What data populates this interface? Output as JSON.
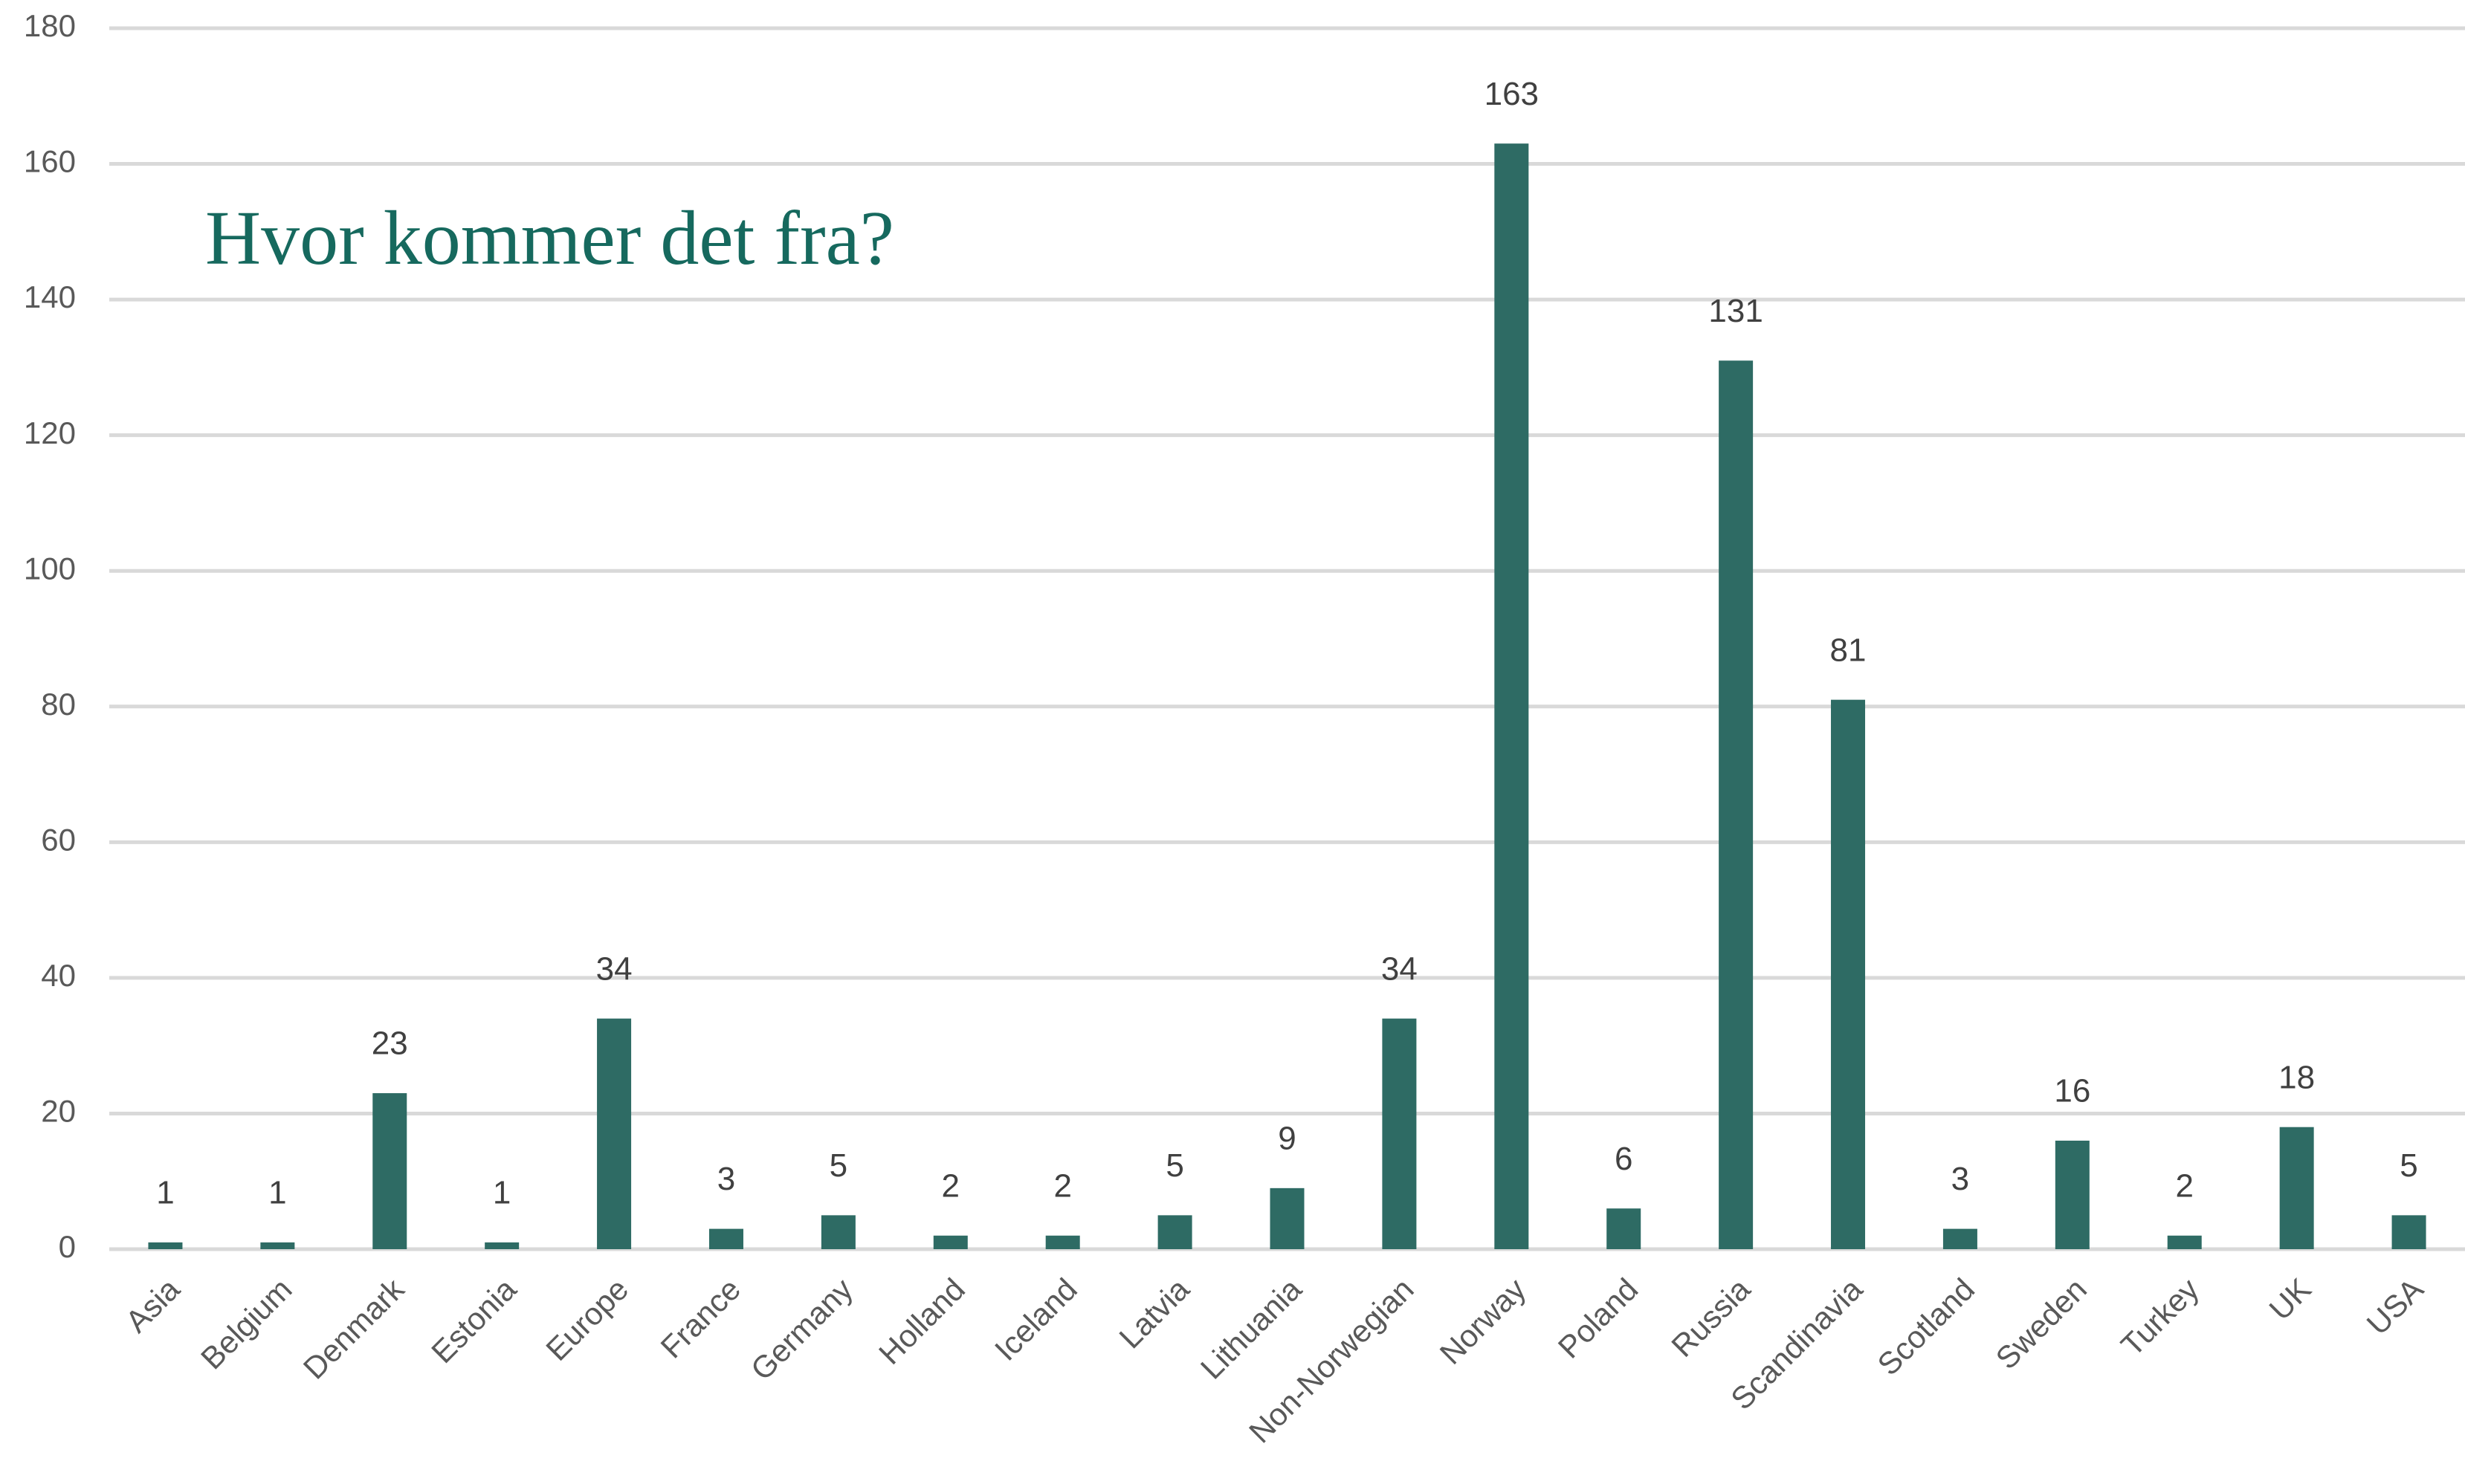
{
  "chart_data": {
    "type": "bar",
    "title": "Hvor kommer det fra?",
    "categories": [
      "Asia",
      "Belgium",
      "Denmark",
      "Estonia",
      "Europe",
      "France",
      "Germany",
      "Holland",
      "Iceland",
      "Latvia",
      "Lithuania",
      "Non-Norwegian",
      "Norway",
      "Poland",
      "Russia",
      "Scandinavia",
      "Scotland",
      "Sweden",
      "Turkey",
      "UK",
      "USA"
    ],
    "values": [
      1,
      1,
      23,
      1,
      34,
      3,
      5,
      2,
      2,
      5,
      9,
      34,
      163,
      6,
      131,
      81,
      3,
      16,
      2,
      18,
      5
    ],
    "color": "#2e6b64",
    "ylim": [
      0,
      180
    ],
    "yticks": [
      0,
      20,
      40,
      60,
      80,
      100,
      120,
      140,
      160,
      180
    ],
    "grid": true
  }
}
